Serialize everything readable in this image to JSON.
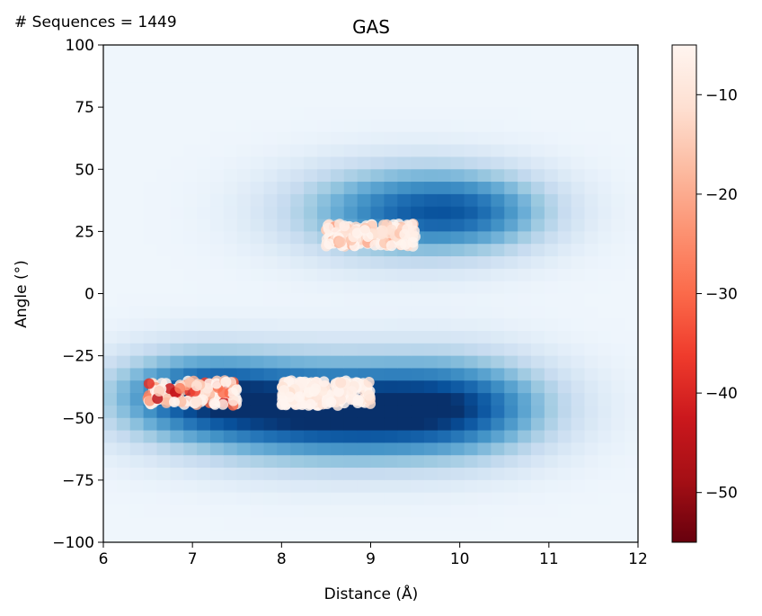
{
  "annotation": "# Sequences = 1449",
  "chart_data": {
    "type": "heatmap",
    "title": "GAS",
    "xlabel": "Distance (Å)",
    "ylabel": "Angle (°)",
    "xlim": [
      6,
      12
    ],
    "ylim": [
      -100,
      100
    ],
    "x_ticks": [
      6,
      7,
      8,
      9,
      10,
      11,
      12
    ],
    "y_ticks": [
      100,
      75,
      50,
      25,
      0,
      -25,
      -50,
      -75,
      -100
    ],
    "x_tick_labels": [
      "6",
      "7",
      "8",
      "9",
      "10",
      "11",
      "12"
    ],
    "y_tick_labels": [
      "100",
      "75",
      "50",
      "25",
      "0",
      "−25",
      "−50",
      "−75",
      "−100"
    ],
    "grid": false,
    "heatmap": {
      "colormap": "Blues",
      "bins": {
        "x": 40,
        "y": 40
      },
      "density_peaks": [
        {
          "x": 8.6,
          "y": -47,
          "sx": 1.2,
          "sy": 14,
          "weight": 1.0
        },
        {
          "x": 7.0,
          "y": -40,
          "sx": 0.7,
          "sy": 12,
          "weight": 0.55
        },
        {
          "x": 10.1,
          "y": -45,
          "sx": 0.7,
          "sy": 14,
          "weight": 0.45
        },
        {
          "x": 9.4,
          "y": 33,
          "sx": 0.9,
          "sy": 13,
          "weight": 0.68
        },
        {
          "x": 10.3,
          "y": 33,
          "sx": 0.6,
          "sy": 11,
          "weight": 0.3
        }
      ],
      "background_level": 0.04
    },
    "scatter_clusters": [
      {
        "x_range": [
          6.5,
          7.5
        ],
        "y_range": [
          -45,
          -35
        ],
        "count": 130,
        "color_range": [
          -45,
          -5
        ]
      },
      {
        "x_range": [
          8.0,
          9.0
        ],
        "y_range": [
          -45,
          -35
        ],
        "count": 220,
        "color_range": [
          -12,
          -5
        ]
      },
      {
        "x_range": [
          8.5,
          9.5
        ],
        "y_range": [
          19,
          28
        ],
        "count": 180,
        "color_range": [
          -22,
          -5
        ]
      }
    ],
    "colorbar": {
      "colormap": "Reds_r",
      "range": [
        -55,
        -5
      ],
      "ticks": [
        -10,
        -20,
        -30,
        -40,
        -50
      ],
      "tick_labels": [
        "−10",
        "−20",
        "−30",
        "−40",
        "−50"
      ]
    }
  }
}
